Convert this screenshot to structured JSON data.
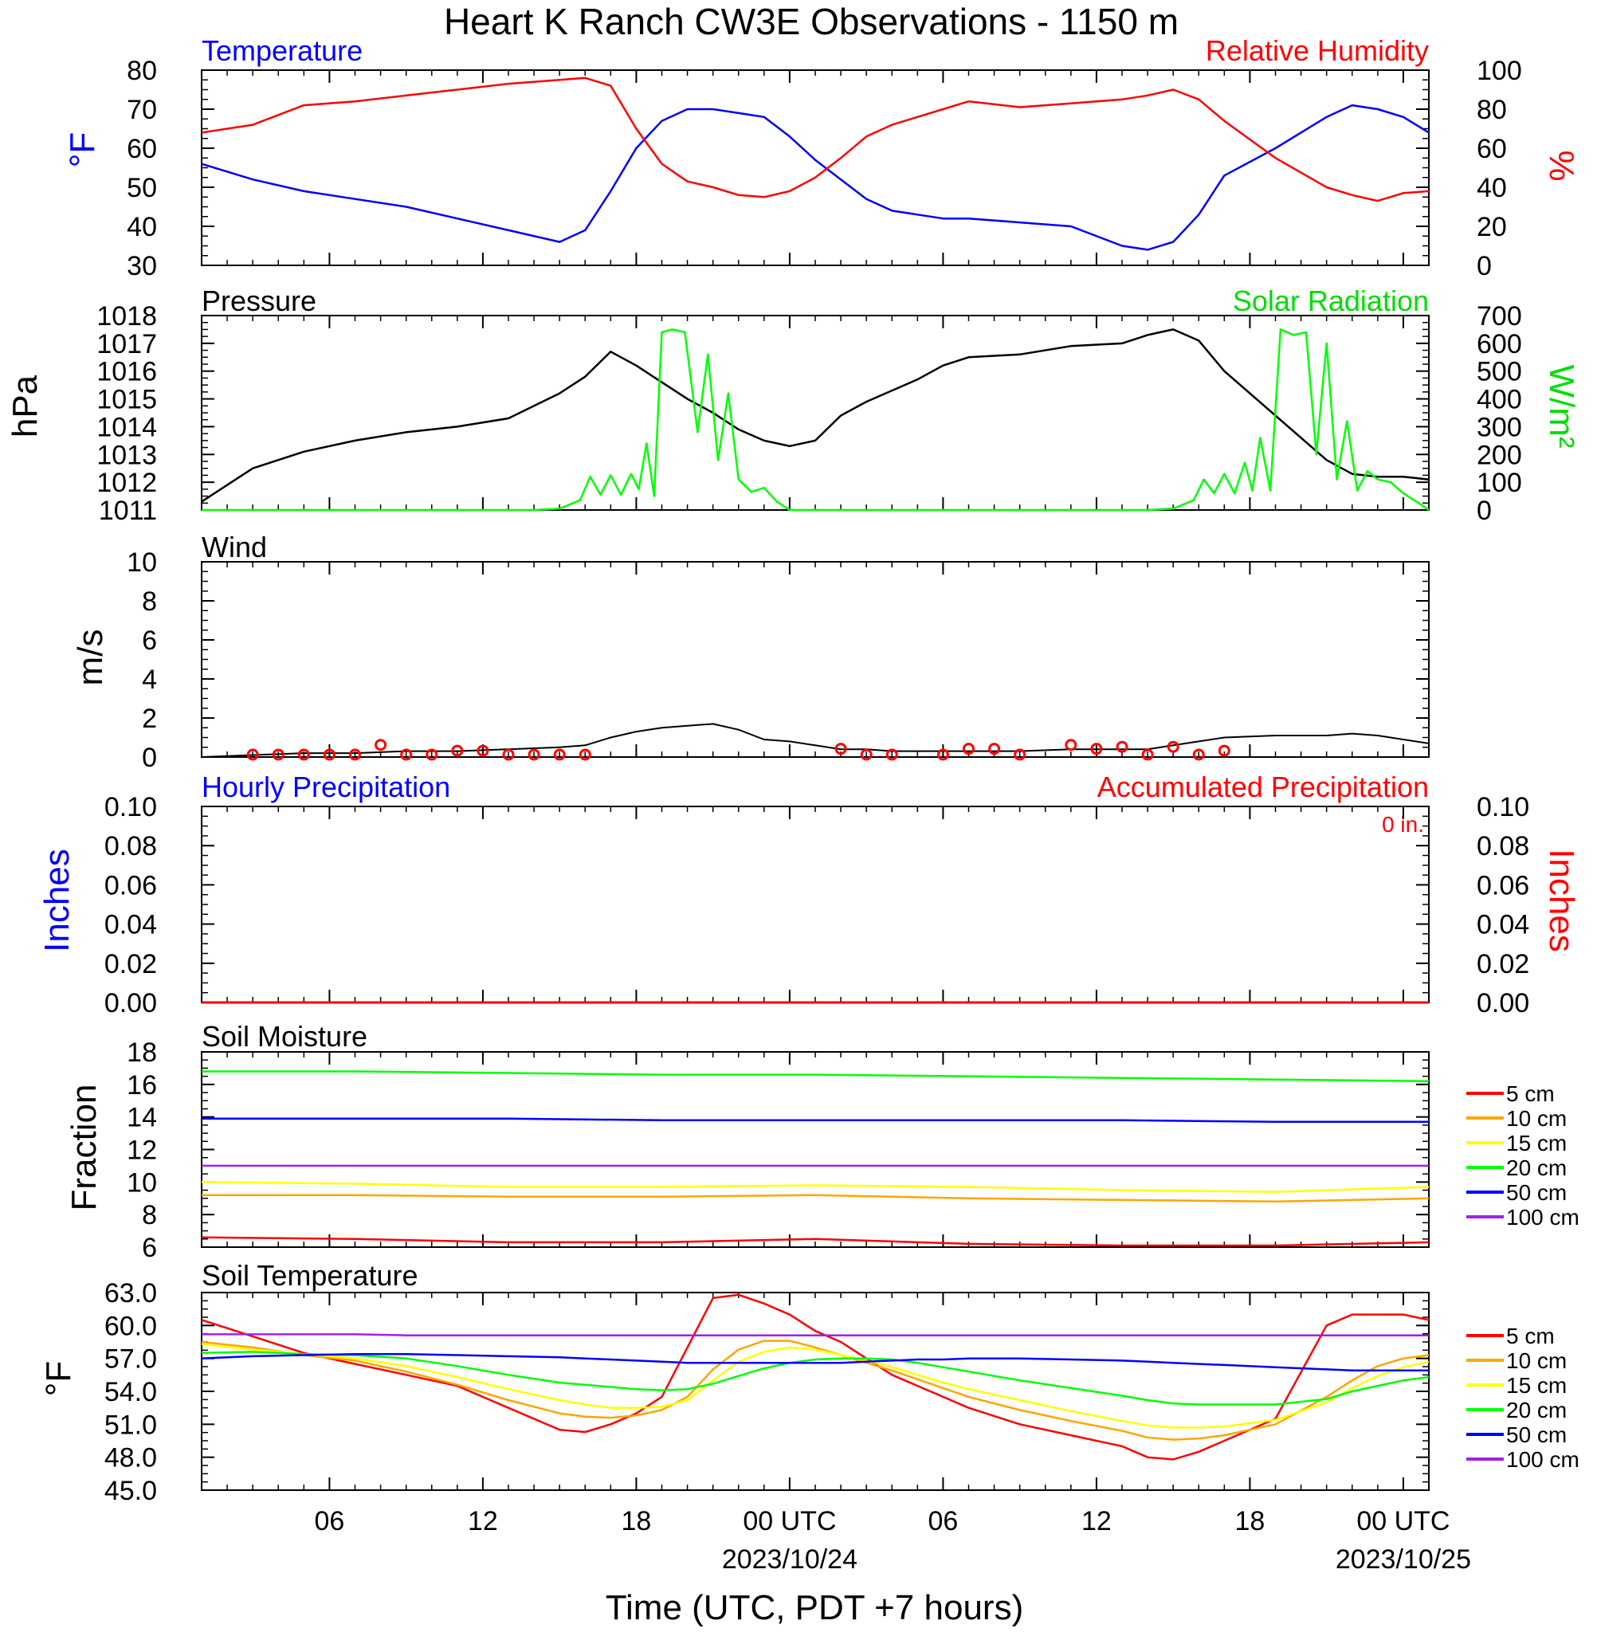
{
  "page": {
    "title": "Heart K Ranch CW3E Observations - 1150 m",
    "xlabel": "Time (UTC, PDT +7 hours)"
  },
  "colors": {
    "temperature": "#0000ff",
    "humidity": "#ff0000",
    "pressure": "#000000",
    "solar": "#00ff00",
    "wind": "#000000",
    "wind_marker": "#ff0000",
    "hourly_precip": "#0000ff",
    "accum_precip": "#ff0000",
    "depth_colors": [
      "#ff0000",
      "#ffa500",
      "#ffff00",
      "#00ff00",
      "#0000ff",
      "#a020f0"
    ]
  },
  "x_axis": {
    "start_hour": 1,
    "end_hour": 49,
    "tick_hours": [
      6,
      12,
      18,
      24,
      30,
      36,
      42,
      48
    ],
    "tick_labels": [
      "06",
      "12",
      "18",
      "00 UTC",
      "06",
      "12",
      "18",
      "00 UTC"
    ],
    "date_labels": [
      "",
      "",
      "",
      "2023/10/24",
      "",
      "",
      "",
      "2023/10/25"
    ]
  },
  "chart_data": [
    {
      "type": "line",
      "title_left": "Temperature",
      "title_right": "Relative Humidity",
      "ylabel_left": "°F",
      "ylabel_right": "%",
      "ylim": [
        30,
        80
      ],
      "yticks": [
        30,
        40,
        50,
        60,
        70,
        80
      ],
      "ylim_right": [
        0,
        100
      ],
      "yticks_right": [
        0,
        20,
        40,
        60,
        80,
        100
      ],
      "x_hours": [
        1,
        3,
        5,
        7,
        9,
        11,
        13,
        15,
        16,
        17,
        18,
        19,
        20,
        21,
        22,
        23,
        24,
        25,
        26,
        27,
        28,
        29,
        30,
        31,
        33,
        35,
        37,
        38,
        39,
        40,
        41,
        43,
        45,
        46,
        47,
        48,
        49
      ],
      "series": [
        {
          "name": "Temperature",
          "axis": "left",
          "values": [
            56,
            52,
            49,
            47,
            45,
            42,
            39,
            36,
            39,
            49,
            60,
            67,
            70,
            70,
            69,
            68,
            63,
            57,
            52,
            47,
            44,
            43,
            42,
            42,
            41,
            40,
            35,
            34,
            36,
            43,
            53,
            60,
            68,
            71,
            70,
            68,
            64
          ]
        },
        {
          "name": "Relative Humidity",
          "axis": "right",
          "values": [
            68,
            72,
            82,
            84,
            87,
            90,
            93,
            95,
            96,
            92,
            70,
            52,
            43,
            40,
            36,
            35,
            38,
            45,
            55,
            66,
            72,
            76,
            80,
            84,
            81,
            83,
            85,
            87,
            90,
            85,
            74,
            55,
            40,
            36,
            33,
            37,
            38
          ]
        }
      ]
    },
    {
      "type": "line",
      "title_left": "Pressure",
      "title_right": "Solar Radiation",
      "ylabel_left": "hPa",
      "ylabel_right": "W/m²",
      "ylim": [
        1011.0,
        1018.0
      ],
      "yticks": [
        1011.0,
        1012.0,
        1013.0,
        1014.0,
        1015.0,
        1016.0,
        1017.0,
        1018.0
      ],
      "ylim_right": [
        0,
        700
      ],
      "yticks_right": [
        0,
        100,
        200,
        300,
        400,
        500,
        600,
        700
      ],
      "pressure_hours": [
        1,
        3,
        5,
        7,
        9,
        11,
        13,
        15,
        16,
        17,
        18,
        19,
        20,
        21,
        22,
        23,
        24,
        25,
        26,
        27,
        28,
        29,
        30,
        31,
        33,
        35,
        37,
        38,
        39,
        40,
        41,
        43,
        45,
        46,
        47,
        48,
        49
      ],
      "solar_hours": [
        1,
        14,
        15,
        15.8,
        16.2,
        16.6,
        17,
        17.4,
        17.8,
        18.1,
        18.4,
        18.7,
        19.0,
        19.4,
        19.9,
        20.4,
        20.8,
        21.2,
        21.6,
        22,
        22.5,
        23,
        23.5,
        24,
        25,
        38,
        39,
        39.8,
        40.2,
        40.6,
        41,
        41.4,
        41.8,
        42.1,
        42.4,
        42.8,
        43.2,
        43.7,
        44.2,
        44.6,
        45,
        45.4,
        45.8,
        46.2,
        46.6,
        47,
        47.5,
        48,
        48.6,
        49
      ],
      "series": [
        {
          "name": "Pressure",
          "axis": "left",
          "x": "pressure_hours",
          "values": [
            1011.3,
            1012.5,
            1013.1,
            1013.5,
            1013.8,
            1014.0,
            1014.3,
            1015.2,
            1015.8,
            1016.7,
            1016.2,
            1015.6,
            1015.0,
            1014.5,
            1013.9,
            1013.5,
            1013.3,
            1013.5,
            1014.4,
            1014.9,
            1015.3,
            1015.7,
            1016.2,
            1016.5,
            1016.6,
            1016.9,
            1017.0,
            1017.3,
            1017.5,
            1017.1,
            1016.0,
            1014.4,
            1012.8,
            1012.3,
            1012.2,
            1012.2,
            1012.1
          ]
        },
        {
          "name": "Solar Radiation",
          "axis": "right",
          "x": "solar_hours",
          "values": [
            0,
            0,
            5,
            35,
            120,
            55,
            125,
            55,
            130,
            75,
            240,
            50,
            640,
            650,
            640,
            280,
            560,
            180,
            420,
            110,
            65,
            80,
            30,
            0,
            0,
            0,
            5,
            35,
            110,
            60,
            130,
            60,
            170,
            70,
            260,
            70,
            650,
            630,
            640,
            200,
            600,
            110,
            320,
            70,
            140,
            110,
            100,
            60,
            25,
            0
          ]
        }
      ]
    },
    {
      "type": "line",
      "title_left": "Wind",
      "ylabel_left": "m/s",
      "ylim": [
        0,
        10
      ],
      "yticks": [
        0,
        2,
        4,
        6,
        8,
        10
      ],
      "x_hours": [
        1,
        3,
        5,
        7,
        9,
        11,
        13,
        15,
        16,
        17,
        18,
        19,
        20,
        21,
        22,
        23,
        24,
        25,
        26,
        27,
        28,
        29,
        30,
        31,
        33,
        35,
        37,
        38,
        39,
        40,
        41,
        43,
        45,
        46,
        47,
        48,
        49
      ],
      "series": [
        {
          "name": "Wind speed",
          "values": [
            0,
            0.1,
            0.2,
            0.2,
            0.3,
            0.3,
            0.4,
            0.5,
            0.6,
            1.0,
            1.3,
            1.5,
            1.6,
            1.7,
            1.4,
            0.9,
            0.8,
            0.6,
            0.4,
            0.4,
            0.3,
            0.3,
            0.3,
            0.3,
            0.3,
            0.4,
            0.4,
            0.4,
            0.6,
            0.8,
            1.0,
            1.1,
            1.1,
            1.2,
            1.1,
            0.9,
            0.7
          ]
        }
      ],
      "markers": {
        "hours": [
          3,
          4,
          5,
          6,
          7,
          8,
          9,
          10,
          11,
          12,
          13,
          14,
          15,
          16,
          26,
          27,
          28,
          30,
          31,
          32,
          33,
          35,
          36,
          37,
          38,
          39,
          40,
          41
        ],
        "values": [
          0,
          0,
          0,
          0,
          0,
          0.5,
          0,
          0,
          0.2,
          0.2,
          0,
          0,
          0,
          0,
          0.3,
          0,
          0,
          0,
          0.3,
          0.3,
          0,
          0.5,
          0.3,
          0.4,
          0,
          0.4,
          0,
          0.2
        ]
      }
    },
    {
      "type": "line",
      "title_left": "Hourly Precipitation",
      "title_right": "Accumulated Precipitation",
      "annotation": "0 in.",
      "ylabel_left": "Inches",
      "ylabel_right": "Inches",
      "ylim": [
        0.0,
        0.1
      ],
      "yticks": [
        0.0,
        0.02,
        0.04,
        0.06,
        0.08,
        0.1
      ],
      "ytick_labels": [
        "0.00",
        "0.02",
        "0.04",
        "0.06",
        "0.08",
        "0.10"
      ],
      "x_hours": [
        1,
        49
      ],
      "series": [
        {
          "name": "Hourly Precipitation",
          "values": [
            0,
            0
          ]
        },
        {
          "name": "Accumulated Precipitation",
          "values": [
            0,
            0
          ]
        }
      ]
    },
    {
      "type": "line",
      "title_left": "Soil Moisture",
      "ylabel_left": "Fraction",
      "ylim": [
        6,
        18
      ],
      "yticks": [
        6,
        8,
        10,
        12,
        14,
        16,
        18
      ],
      "x_hours": [
        1,
        7,
        13,
        19,
        25,
        31,
        37,
        43,
        49
      ],
      "series": [
        {
          "name": "5 cm",
          "values": [
            6.6,
            6.5,
            6.3,
            6.3,
            6.5,
            6.2,
            6.1,
            6.1,
            6.3
          ]
        },
        {
          "name": "10 cm",
          "values": [
            9.2,
            9.2,
            9.1,
            9.1,
            9.2,
            9.0,
            8.9,
            8.8,
            9.0
          ]
        },
        {
          "name": "15 cm",
          "values": [
            10.0,
            9.9,
            9.7,
            9.7,
            9.8,
            9.7,
            9.5,
            9.4,
            9.7
          ]
        },
        {
          "name": "20 cm",
          "values": [
            16.8,
            16.8,
            16.7,
            16.6,
            16.6,
            16.5,
            16.4,
            16.3,
            16.2
          ]
        },
        {
          "name": "50 cm",
          "values": [
            13.9,
            13.9,
            13.9,
            13.8,
            13.8,
            13.8,
            13.8,
            13.7,
            13.7
          ]
        },
        {
          "name": "100 cm",
          "values": [
            11.0,
            11.0,
            11.0,
            11.0,
            11.0,
            11.0,
            11.0,
            11.0,
            11.0
          ]
        }
      ]
    },
    {
      "type": "line",
      "title_left": "Soil Temperature",
      "ylabel_left": "°F",
      "ylim": [
        45.0,
        63.0
      ],
      "yticks": [
        45.0,
        48.0,
        51.0,
        54.0,
        57.0,
        60.0,
        63.0
      ],
      "ytick_labels": [
        "45.0",
        "48.0",
        "51.0",
        "54.0",
        "57.0",
        "60.0",
        "63.0"
      ],
      "x_hours": [
        1,
        3,
        5,
        7,
        9,
        11,
        13,
        15,
        16,
        17,
        18,
        19,
        20,
        21,
        22,
        23,
        24,
        25,
        26,
        27,
        28,
        29,
        30,
        31,
        33,
        35,
        37,
        38,
        39,
        40,
        41,
        43,
        45,
        46,
        47,
        48,
        49
      ],
      "series": [
        {
          "name": "5 cm",
          "values": [
            60.5,
            59.0,
            57.5,
            56.5,
            55.5,
            54.5,
            52.5,
            50.5,
            50.3,
            51.0,
            52.0,
            53.5,
            58.0,
            62.5,
            62.8,
            62.0,
            61.0,
            59.5,
            58.5,
            57.0,
            55.5,
            54.5,
            53.5,
            52.5,
            51.0,
            50.0,
            49.0,
            48.0,
            47.8,
            48.5,
            49.5,
            51.5,
            60.0,
            61.0,
            61.0,
            61.0,
            60.5
          ]
        },
        {
          "name": "10 cm",
          "values": [
            58.5,
            58.0,
            57.3,
            56.8,
            55.8,
            54.6,
            53.2,
            52.0,
            51.7,
            51.6,
            51.8,
            52.3,
            53.5,
            56.0,
            57.8,
            58.6,
            58.6,
            58.0,
            57.3,
            56.6,
            55.9,
            55.1,
            54.3,
            53.5,
            52.3,
            51.3,
            50.4,
            49.8,
            49.6,
            49.7,
            50.0,
            51.0,
            53.5,
            55.0,
            56.3,
            57.0,
            57.3
          ]
        },
        {
          "name": "15 cm",
          "values": [
            58.3,
            57.8,
            57.4,
            57.0,
            56.3,
            55.3,
            54.2,
            53.2,
            52.8,
            52.5,
            52.5,
            52.6,
            53.2,
            55.0,
            56.7,
            57.6,
            58.0,
            57.8,
            57.3,
            56.8,
            56.2,
            55.5,
            54.8,
            54.2,
            53.2,
            52.2,
            51.3,
            50.9,
            50.7,
            50.7,
            50.8,
            51.4,
            53.0,
            54.3,
            55.4,
            56.2,
            56.7
          ]
        },
        {
          "name": "20 cm",
          "values": [
            57.5,
            57.6,
            57.4,
            57.3,
            57.0,
            56.3,
            55.5,
            54.8,
            54.6,
            54.4,
            54.2,
            54.1,
            54.2,
            54.7,
            55.4,
            56.1,
            56.6,
            56.9,
            57.0,
            57.0,
            56.9,
            56.6,
            56.2,
            55.8,
            55.0,
            54.3,
            53.6,
            53.2,
            52.9,
            52.8,
            52.8,
            52.8,
            53.3,
            54.0,
            54.5,
            55.0,
            55.3
          ]
        },
        {
          "name": "50 cm",
          "values": [
            57.0,
            57.2,
            57.3,
            57.4,
            57.4,
            57.3,
            57.2,
            57.1,
            57.0,
            56.9,
            56.8,
            56.7,
            56.6,
            56.6,
            56.6,
            56.6,
            56.6,
            56.6,
            56.6,
            56.7,
            56.8,
            56.9,
            56.9,
            57.0,
            57.0,
            56.9,
            56.8,
            56.7,
            56.6,
            56.5,
            56.4,
            56.2,
            56.0,
            55.9,
            55.9,
            55.9,
            55.9
          ]
        },
        {
          "name": "100 cm",
          "values": [
            59.2,
            59.2,
            59.2,
            59.2,
            59.1,
            59.1,
            59.1,
            59.1,
            59.1,
            59.1,
            59.1,
            59.1,
            59.1,
            59.1,
            59.1,
            59.1,
            59.1,
            59.1,
            59.1,
            59.1,
            59.1,
            59.1,
            59.1,
            59.1,
            59.1,
            59.1,
            59.1,
            59.1,
            59.1,
            59.1,
            59.1,
            59.1,
            59.1,
            59.1,
            59.1,
            59.1,
            59.1
          ]
        }
      ]
    }
  ]
}
